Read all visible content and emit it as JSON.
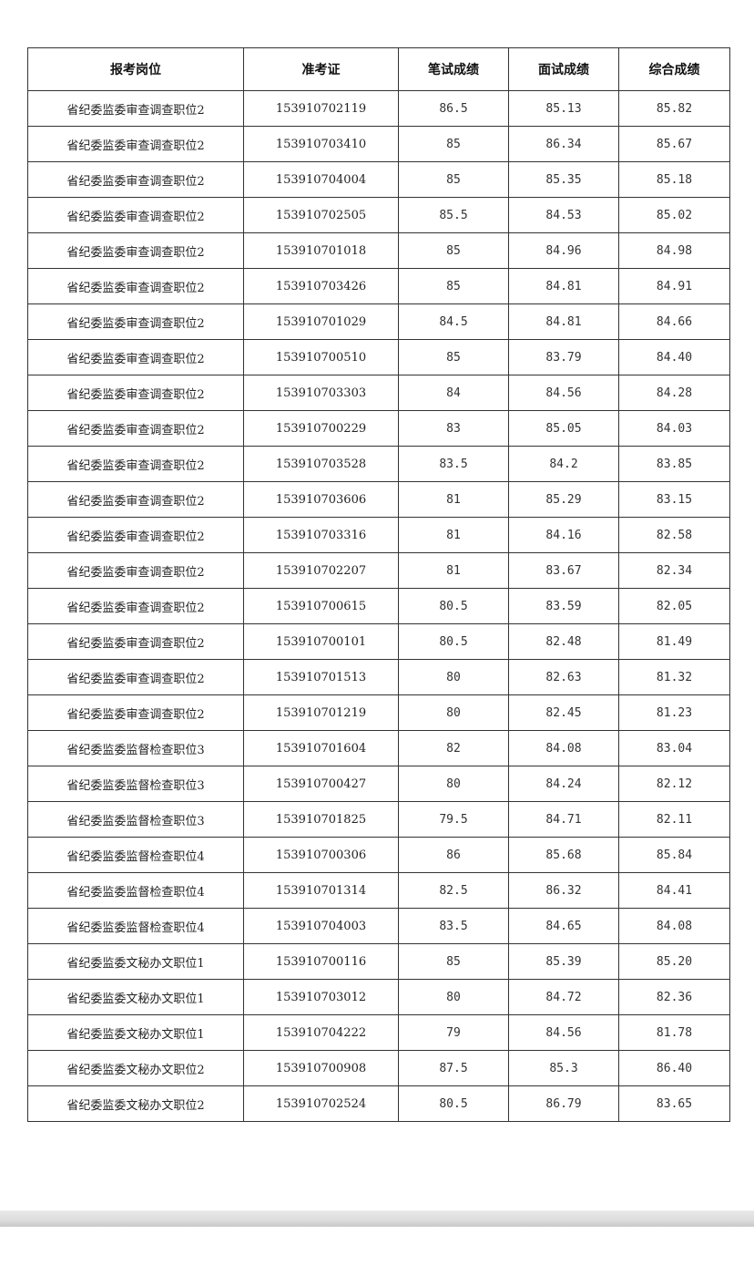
{
  "table": {
    "headers": [
      "报考岗位",
      "准考证",
      "笔试成绩",
      "面试成绩",
      "综合成绩"
    ],
    "rows": [
      [
        "省纪委监委审查调查职位2",
        "153910702119",
        "86.5",
        "85.13",
        "85.82"
      ],
      [
        "省纪委监委审查调查职位2",
        "153910703410",
        "85",
        "86.34",
        "85.67"
      ],
      [
        "省纪委监委审查调查职位2",
        "153910704004",
        "85",
        "85.35",
        "85.18"
      ],
      [
        "省纪委监委审查调查职位2",
        "153910702505",
        "85.5",
        "84.53",
        "85.02"
      ],
      [
        "省纪委监委审查调查职位2",
        "153910701018",
        "85",
        "84.96",
        "84.98"
      ],
      [
        "省纪委监委审查调查职位2",
        "153910703426",
        "85",
        "84.81",
        "84.91"
      ],
      [
        "省纪委监委审查调查职位2",
        "153910701029",
        "84.5",
        "84.81",
        "84.66"
      ],
      [
        "省纪委监委审查调查职位2",
        "153910700510",
        "85",
        "83.79",
        "84.40"
      ],
      [
        "省纪委监委审查调查职位2",
        "153910703303",
        "84",
        "84.56",
        "84.28"
      ],
      [
        "省纪委监委审查调查职位2",
        "153910700229",
        "83",
        "85.05",
        "84.03"
      ],
      [
        "省纪委监委审查调查职位2",
        "153910703528",
        "83.5",
        "84.2",
        "83.85"
      ],
      [
        "省纪委监委审查调查职位2",
        "153910703606",
        "81",
        "85.29",
        "83.15"
      ],
      [
        "省纪委监委审查调查职位2",
        "153910703316",
        "81",
        "84.16",
        "82.58"
      ],
      [
        "省纪委监委审查调查职位2",
        "153910702207",
        "81",
        "83.67",
        "82.34"
      ],
      [
        "省纪委监委审查调查职位2",
        "153910700615",
        "80.5",
        "83.59",
        "82.05"
      ],
      [
        "省纪委监委审查调查职位2",
        "153910700101",
        "80.5",
        "82.48",
        "81.49"
      ],
      [
        "省纪委监委审查调查职位2",
        "153910701513",
        "80",
        "82.63",
        "81.32"
      ],
      [
        "省纪委监委审查调查职位2",
        "153910701219",
        "80",
        "82.45",
        "81.23"
      ],
      [
        "省纪委监委监督检查职位3",
        "153910701604",
        "82",
        "84.08",
        "83.04"
      ],
      [
        "省纪委监委监督检查职位3",
        "153910700427",
        "80",
        "84.24",
        "82.12"
      ],
      [
        "省纪委监委监督检查职位3",
        "153910701825",
        "79.5",
        "84.71",
        "82.11"
      ],
      [
        "省纪委监委监督检查职位4",
        "153910700306",
        "86",
        "85.68",
        "85.84"
      ],
      [
        "省纪委监委监督检查职位4",
        "153910701314",
        "82.5",
        "86.32",
        "84.41"
      ],
      [
        "省纪委监委监督检查职位4",
        "153910704003",
        "83.5",
        "84.65",
        "84.08"
      ],
      [
        "省纪委监委文秘办文职位1",
        "153910700116",
        "85",
        "85.39",
        "85.20"
      ],
      [
        "省纪委监委文秘办文职位1",
        "153910703012",
        "80",
        "84.72",
        "82.36"
      ],
      [
        "省纪委监委文秘办文职位1",
        "153910704222",
        "79",
        "84.56",
        "81.78"
      ],
      [
        "省纪委监委文秘办文职位2",
        "153910700908",
        "87.5",
        "85.3",
        "86.40"
      ],
      [
        "省纪委监委文秘办文职位2",
        "153910702524",
        "80.5",
        "86.79",
        "83.65"
      ]
    ]
  }
}
